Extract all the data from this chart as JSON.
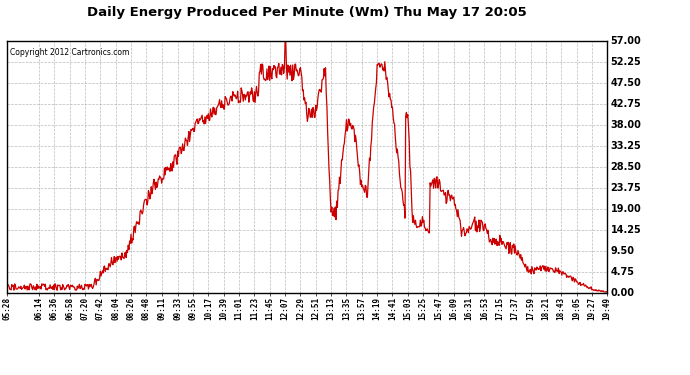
{
  "title": "Daily Energy Produced Per Minute (Wm) Thu May 17 20:05",
  "copyright": "Copyright 2012 Cartronics.com",
  "line_color": "#cc0000",
  "bg_color": "#ffffff",
  "plot_bg_color": "#ffffff",
  "grid_color": "#aaaaaa",
  "yticks": [
    0.0,
    4.75,
    9.5,
    14.25,
    19.0,
    23.75,
    28.5,
    33.25,
    38.0,
    42.75,
    47.5,
    52.25,
    57.0
  ],
  "ymax": 57.0,
  "ymin": 0.0,
  "xtick_labels": [
    "05:28",
    "06:14",
    "06:36",
    "06:58",
    "07:20",
    "07:42",
    "08:04",
    "08:26",
    "08:48",
    "09:11",
    "09:33",
    "09:55",
    "10:17",
    "10:39",
    "11:01",
    "11:23",
    "11:45",
    "12:07",
    "12:29",
    "12:51",
    "13:13",
    "13:35",
    "13:57",
    "14:19",
    "14:41",
    "15:03",
    "15:25",
    "15:47",
    "16:09",
    "16:31",
    "16:53",
    "17:15",
    "17:37",
    "17:59",
    "18:21",
    "18:43",
    "19:05",
    "19:27",
    "19:49"
  ]
}
